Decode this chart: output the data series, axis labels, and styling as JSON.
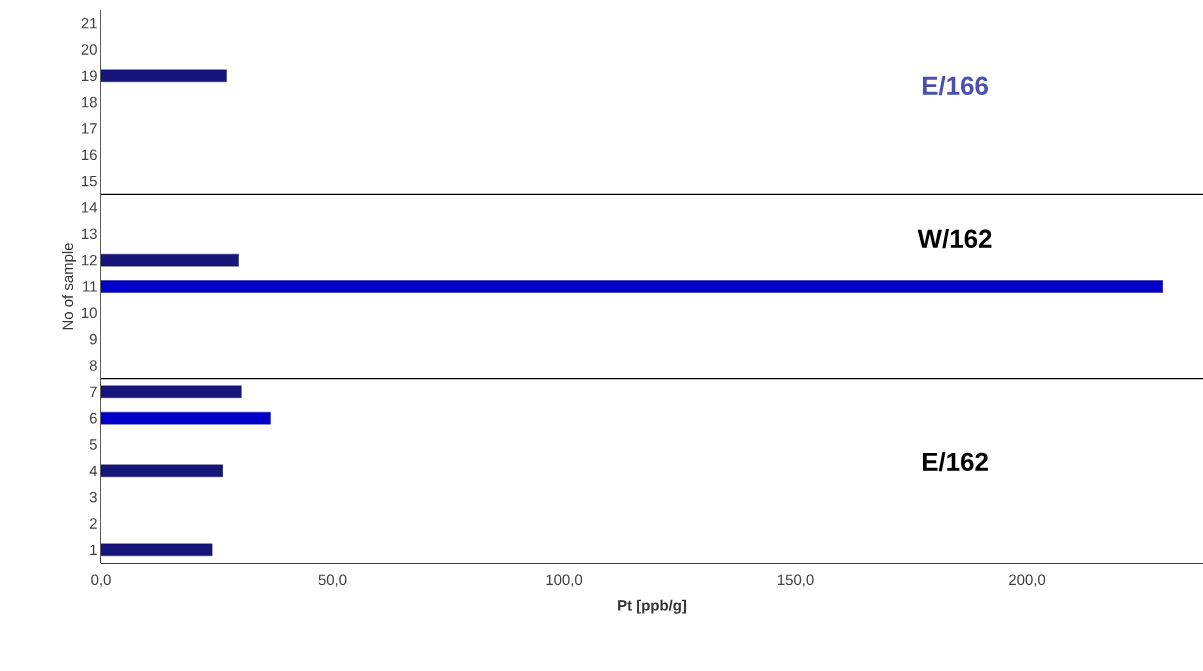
{
  "chart_data": {
    "type": "bar",
    "orientation": "horizontal",
    "xlabel": "Pt [ppb/g]",
    "ylabel": "No of sample",
    "categories": [
      "21",
      "20",
      "19",
      "18",
      "17",
      "16",
      "15",
      "14",
      "13",
      "12",
      "11",
      "10",
      "9",
      "8",
      "7",
      "6",
      "5",
      "4",
      "3",
      "2",
      "1"
    ],
    "values": [
      null,
      null,
      27.1,
      null,
      null,
      null,
      null,
      null,
      null,
      29.7,
      229.3,
      null,
      null,
      null,
      30.3,
      36.6,
      null,
      26.3,
      null,
      null,
      24.0
    ],
    "colors": [
      "#15157a",
      "#15157a",
      "#15157a",
      "#15157a",
      "#15157a",
      "#15157a",
      "#15157a",
      "#15157a",
      "#15157a",
      "#15157a",
      "#0000c8",
      "#15157a",
      "#15157a",
      "#15157a",
      "#15157a",
      "#0000c8",
      "#15157a",
      "#15157a",
      "#15157a",
      "#15157a",
      "#15157a"
    ],
    "xlim": [
      0,
      238
    ],
    "xticks": [
      {
        "value": 0,
        "label": "0,0"
      },
      {
        "value": 50,
        "label": "50,0"
      },
      {
        "value": 100,
        "label": "100,0"
      },
      {
        "value": 150,
        "label": "150,0"
      },
      {
        "value": 200,
        "label": "200,0"
      }
    ],
    "bands": [
      {
        "axis": "y",
        "from": "1",
        "to": "7",
        "label": "E/162",
        "color": "#ffffff"
      },
      {
        "axis": "y",
        "from": "8",
        "to": "14",
        "label": "W/162",
        "color": "#ffffff"
      },
      {
        "axis": "y",
        "from": "15",
        "to": "21",
        "label": "E/166",
        "color": "#ffffff"
      }
    ]
  }
}
